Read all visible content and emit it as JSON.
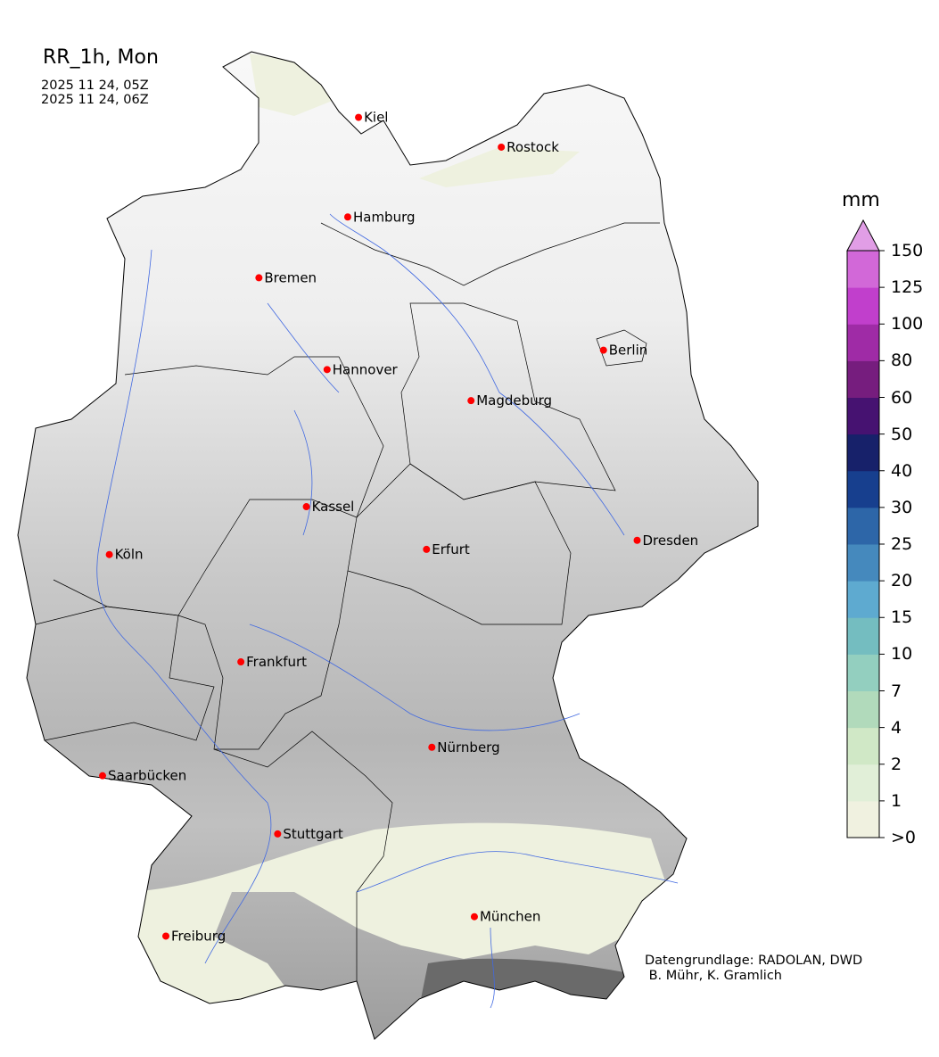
{
  "title": "RR_1h, Mon",
  "time_start": "2025 11 24, 05Z",
  "time_end": "2025 11 24, 06Z",
  "credit": "Datengrundlage: RADOLAN, DWD\n B. Mühr, K. Gramlich",
  "colorbar": {
    "unit": "mm",
    "extend": "max",
    "labels": [
      ">0",
      "1",
      "2",
      "4",
      "7",
      "10",
      "15",
      "20",
      "25",
      "30",
      "40",
      "50",
      "60",
      "80",
      "100",
      "125",
      "150"
    ],
    "colors": [
      "#f0f1e0",
      "#e1efd8",
      "#d0e8c6",
      "#b1dabb",
      "#93cfbf",
      "#74bdc0",
      "#5eaad0",
      "#4589bd",
      "#2d66a8",
      "#173f8e",
      "#17216a",
      "#461271",
      "#761d7e",
      "#9f2ba6",
      "#c13fcc",
      "#d268d8"
    ],
    "extend_color": "#e19ee6"
  },
  "cities": [
    {
      "name": "Kiel",
      "lon": 10.13,
      "lat": 54.32
    },
    {
      "name": "Rostock",
      "lon": 12.1,
      "lat": 54.09
    },
    {
      "name": "Hamburg",
      "lon": 9.99,
      "lat": 53.55
    },
    {
      "name": "Bremen",
      "lon": 8.8,
      "lat": 53.08
    },
    {
      "name": "Berlin",
      "lon": 13.4,
      "lat": 52.52
    },
    {
      "name": "Hannover",
      "lon": 9.73,
      "lat": 52.37
    },
    {
      "name": "Magdeburg",
      "lon": 11.63,
      "lat": 52.13
    },
    {
      "name": "Kassel",
      "lon": 9.48,
      "lat": 51.31
    },
    {
      "name": "Köln",
      "lon": 6.96,
      "lat": 50.94
    },
    {
      "name": "Erfurt",
      "lon": 11.03,
      "lat": 50.98
    },
    {
      "name": "Dresden",
      "lon": 13.74,
      "lat": 51.05
    },
    {
      "name": "Frankfurt",
      "lon": 8.68,
      "lat": 50.11
    },
    {
      "name": "Nürnberg",
      "lon": 11.08,
      "lat": 49.45
    },
    {
      "name": "Saarbücken",
      "lon": 7.0,
      "lat": 49.23
    },
    {
      "name": "Stuttgart",
      "lon": 9.18,
      "lat": 48.78
    },
    {
      "name": "München",
      "lon": 11.58,
      "lat": 48.14
    },
    {
      "name": "Freiburg",
      "lon": 7.85,
      "lat": 47.99
    }
  ],
  "city_marker_color": "#ff0000",
  "river_color": "#4169e1"
}
